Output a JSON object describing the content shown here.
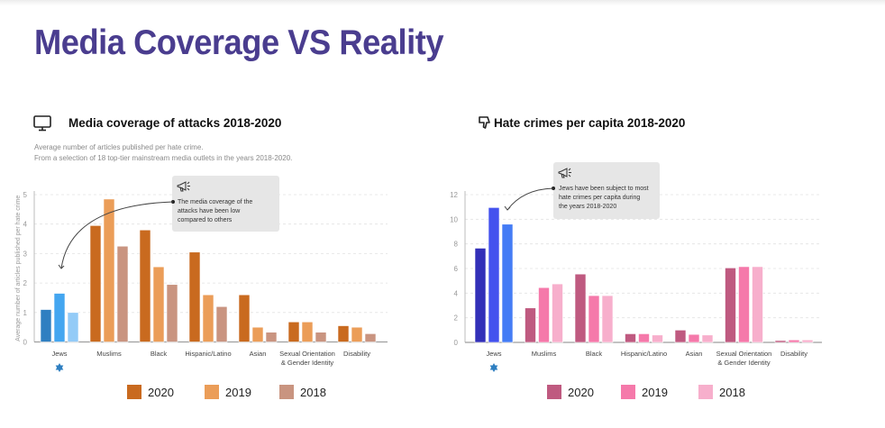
{
  "page": {
    "title": "Media Coverage VS Reality"
  },
  "chart_data": [
    {
      "type": "bar",
      "title": "Media coverage of attacks 2018-2020",
      "title_icon": "monitor-icon",
      "subtitle_lines": [
        "Average number of articles published per hate crime.",
        "From a selection of 18 top-tier mainstream media outlets in the years 2018-2020."
      ],
      "ylabel": "Average number of articles published per hate crime",
      "xlabel": "",
      "ylim": [
        0,
        5
      ],
      "yticks": [
        0,
        1,
        2,
        3,
        4,
        5
      ],
      "grid": true,
      "categories": [
        "Jews",
        "Muslims",
        "Black",
        "Hispanic/Latino",
        "Asian",
        "Sexual Orientation\n& Gender Identity",
        "Disability"
      ],
      "category_marker": {
        "category": "Jews",
        "icon": "star-of-david-icon",
        "color": "#2f7fc1"
      },
      "series": [
        {
          "name": "2020",
          "color": "#c96a1f",
          "values": [
            1.1,
            3.95,
            3.8,
            3.05,
            1.6,
            0.68,
            0.55
          ]
        },
        {
          "name": "2019",
          "color": "#eb9d58",
          "values": [
            1.65,
            4.85,
            2.55,
            1.6,
            0.5,
            0.68,
            0.5
          ]
        },
        {
          "name": "2018",
          "color": "#c99480",
          "values": [
            1.0,
            3.25,
            1.95,
            1.2,
            0.33,
            0.33,
            0.28
          ]
        }
      ],
      "highlight_colors": {
        "category": "Jews",
        "colors": [
          "#2f7fc1",
          "#44a6f0",
          "#93cbf7"
        ]
      },
      "annotation": {
        "icon": "megaphone-icon",
        "text_lines": [
          "The media coverage of the",
          "attacks have been low",
          "compared to others"
        ],
        "points_to": "Jews"
      },
      "legend": {
        "placement": "bottom",
        "entries": [
          "2020",
          "2019",
          "2018"
        ]
      }
    },
    {
      "type": "bar",
      "title": "Hate crimes per capita 2018-2020",
      "title_icon": "thumbs-down-icon",
      "ylabel": "",
      "xlabel": "",
      "ylim": [
        0,
        12
      ],
      "yticks": [
        0,
        2,
        4,
        6,
        8,
        10,
        12
      ],
      "grid": true,
      "categories": [
        "Jews",
        "Muslims",
        "Black",
        "Hispanic/Latino",
        "Asian",
        "Sexual Orientation\n& Gender Identity",
        "Disability"
      ],
      "category_marker": {
        "category": "Jews",
        "icon": "star-of-david-icon",
        "color": "#2f7fc1"
      },
      "series": [
        {
          "name": "2020",
          "color": "#bf5a80",
          "values": [
            7.65,
            2.8,
            5.55,
            0.7,
            1.0,
            6.05,
            0.15
          ]
        },
        {
          "name": "2019",
          "color": "#f579aa",
          "values": [
            10.95,
            4.45,
            3.8,
            0.7,
            0.65,
            6.15,
            0.2
          ]
        },
        {
          "name": "2018",
          "color": "#f7afcc",
          "values": [
            9.6,
            4.75,
            3.8,
            0.6,
            0.6,
            6.15,
            0.2
          ]
        }
      ],
      "highlight_colors": {
        "category": "Jews",
        "colors": [
          "#3330b8",
          "#4452ee",
          "#447cf5"
        ]
      },
      "annotation": {
        "icon": "megaphone-icon",
        "text_lines": [
          "Jews have been subject to most",
          "hate crimes per capita during",
          "the years 2018-2020"
        ],
        "points_to": "Jews"
      },
      "legend": {
        "placement": "bottom",
        "entries": [
          "2020",
          "2019",
          "2018"
        ]
      }
    }
  ]
}
